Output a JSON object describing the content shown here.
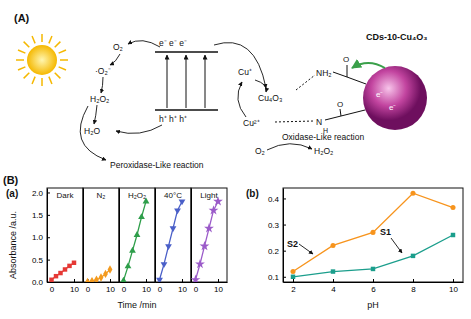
{
  "diagram": {
    "panel": "(A)",
    "labels": {
      "o2_in": "O₂",
      "superoxide": "·O₂⁻",
      "h2o2_left": "H₂O₂",
      "h2o_left": "H₂O",
      "electrons": "e⁻  e⁻  e⁻",
      "holes": "h⁺  h⁺  h⁺",
      "cu_plus": "Cu⁺",
      "cu4o3": "Cu₄O₃",
      "cu2_plus": "Cu²⁺",
      "o2_right": "O₂",
      "h2o2_right": "H₂O₂",
      "oxidase": "Oxidase-Like reaction",
      "peroxidase": "Peroxidase-Like reaction",
      "nh2": "NH₂",
      "amide_n": "N",
      "amide_h": "H",
      "carbonyl_top": "O",
      "carbonyl_bottom": "O",
      "cds": "CDs-10-Cu₄O₃",
      "sphere_e1": "e⁻",
      "sphere_e2": "e⁻"
    }
  },
  "panel_label": "(B)",
  "chart_data": [
    {
      "type": "line",
      "panel": "(a)",
      "title": "Dark",
      "y_label": "Absorbance /a.u.",
      "x": [
        0,
        2,
        4,
        6,
        8,
        10
      ],
      "values": [
        0.05,
        0.13,
        0.2,
        0.28,
        0.36,
        0.43
      ],
      "color": "#e53935",
      "marker": "square",
      "xlim": [
        -2,
        14
      ],
      "xticks": [
        0,
        10
      ],
      "ylim": [
        0,
        2.1
      ],
      "yticks": [
        {
          "value": 0,
          "label": "0.0"
        },
        0.5,
        {
          "value": 1,
          "label": "1.0"
        },
        1.5,
        {
          "value": 2,
          "label": "2.0"
        }
      ]
    },
    {
      "type": "line",
      "title": "N₂",
      "x": [
        0,
        2,
        4,
        6,
        8,
        10
      ],
      "values": [
        0.0,
        0.02,
        0.05,
        0.1,
        0.18,
        0.28
      ],
      "color": "#f39a1e",
      "marker": "diamond",
      "xlim": [
        -2,
        14
      ],
      "xticks": [
        0,
        10
      ],
      "ylim": [
        0,
        2.1
      ]
    },
    {
      "type": "line",
      "title": "H₂O₂",
      "x_label": "Time /min",
      "x": [
        0,
        2,
        4,
        6,
        8,
        10
      ],
      "values": [
        0.03,
        0.35,
        0.7,
        1.05,
        1.45,
        1.8
      ],
      "color": "#2e9e4a",
      "marker": "triangle-up",
      "xlim": [
        -2,
        14
      ],
      "xticks": [
        0,
        10
      ],
      "ylim": [
        0,
        2.1
      ]
    },
    {
      "type": "line",
      "title": "40°C",
      "x": [
        0,
        2,
        4,
        6,
        8,
        10
      ],
      "values": [
        0.05,
        0.4,
        0.8,
        1.2,
        1.6,
        1.8
      ],
      "color": "#4a5fc8",
      "marker": "triangle-down",
      "xlim": [
        -2,
        14
      ],
      "xticks": [
        0,
        10
      ],
      "ylim": [
        0,
        2.1
      ]
    },
    {
      "type": "line",
      "title": "Light",
      "x": [
        0,
        2,
        4,
        6,
        8,
        10
      ],
      "values": [
        0.05,
        0.4,
        0.8,
        1.2,
        1.6,
        1.8
      ],
      "color": "#9b5bc9",
      "marker": "star",
      "xlim": [
        -2,
        14
      ],
      "xticks": [
        0,
        10
      ],
      "ylim": [
        0,
        2.1
      ]
    },
    {
      "type": "line",
      "panel": "(b)",
      "x_label": "pH",
      "x": [
        2,
        4,
        6,
        8,
        10
      ],
      "series": [
        {
          "name": "S2",
          "color": "#f7941d",
          "marker": "circle",
          "values": [
            0.12,
            0.22,
            0.27,
            0.42,
            0.365
          ]
        },
        {
          "name": "S1",
          "color": "#1b9e8c",
          "marker": "square",
          "values": [
            0.1,
            0.12,
            0.13,
            0.18,
            0.26
          ]
        }
      ],
      "xlim": [
        1.5,
        10.5
      ],
      "xticks": [
        2,
        4,
        6,
        8,
        10
      ],
      "ylim": [
        0.08,
        0.44
      ],
      "yticks": [
        0.1,
        0.2,
        0.3,
        0.4
      ]
    }
  ]
}
